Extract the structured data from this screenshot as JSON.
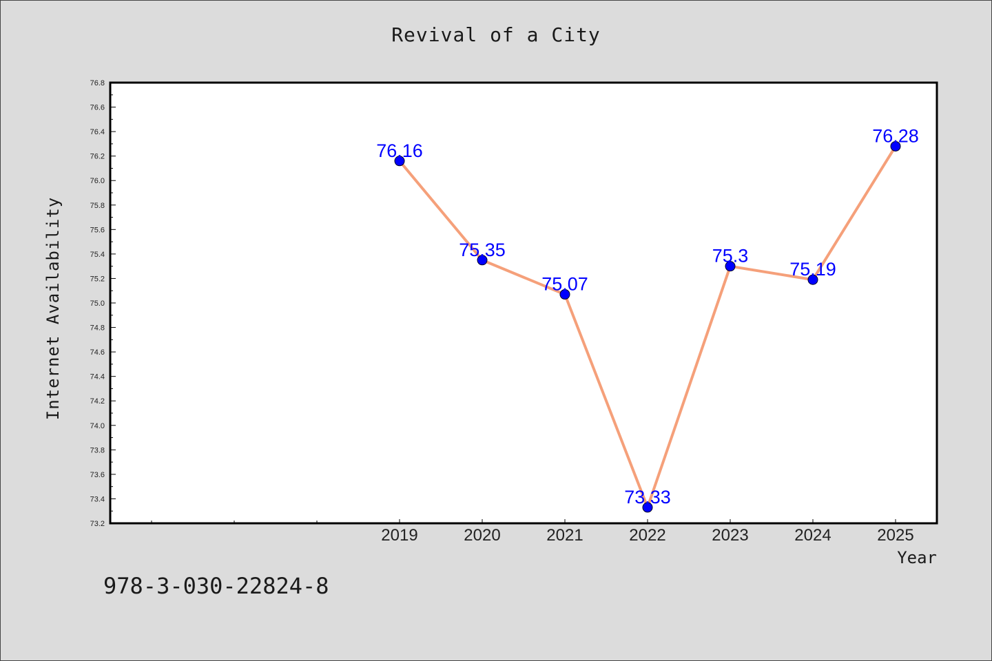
{
  "page": {
    "footer_code": "978-3-030-22824-8"
  },
  "chart_data": {
    "type": "line",
    "title": "Revival of a City",
    "xlabel": "Year",
    "ylabel": "Internet Availability",
    "x_categories": [
      "2019",
      "2020",
      "2021",
      "2022",
      "2023",
      "2024",
      "2025"
    ],
    "series": [
      {
        "values": [
          76.16,
          75.35,
          75.07,
          73.33,
          75.3,
          75.19,
          76.28
        ],
        "labels": [
          "76.16",
          "75.35",
          "75.07",
          "73.33",
          "75.3",
          "75.19",
          "76.28"
        ],
        "line_color": "#f5a07a",
        "marker_color": "#0000ff"
      }
    ],
    "ylim": [
      73.2,
      76.8
    ],
    "y_ticks": [
      "73.2",
      "73.4",
      "73.6",
      "73.8",
      "74.0",
      "74.2",
      "74.4",
      "74.6",
      "74.8",
      "75.0",
      "75.2",
      "75.4",
      "75.6",
      "75.8",
      "76.0",
      "76.2",
      "76.4",
      "76.6",
      "76.8"
    ],
    "grid": false,
    "legend": "none",
    "background_color": "#dcdcdc",
    "plot_background_color": "#ffffff"
  }
}
